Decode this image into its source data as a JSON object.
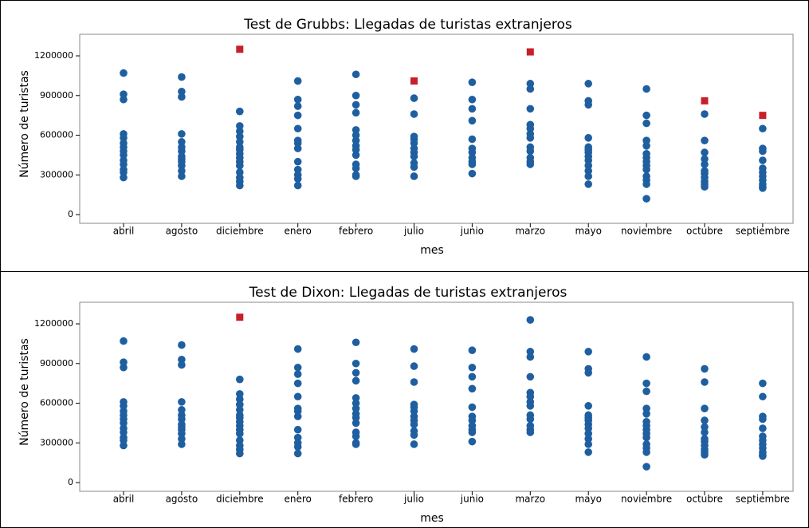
{
  "chart_data": [
    {
      "type": "strip",
      "title": "Test de Grubbs: Llegadas de turistas extranjeros",
      "x_label": "mes",
      "y_label": "Número de turistas",
      "categories": [
        "abril",
        "agosto",
        "diciembre",
        "enero",
        "febrero",
        "julio",
        "junio",
        "marzo",
        "mayo",
        "noviembre",
        "octubre",
        "septiembre"
      ],
      "ylim": [
        -66000,
        1363000
      ],
      "yticks": [
        0,
        300000,
        600000,
        900000,
        1200000
      ],
      "series": [
        {
          "color": "#1f5fa0",
          "marker": "circle",
          "values": [
            [
              1070000,
              910000,
              870000,
              610000,
              580000,
              540000,
              510000,
              480000,
              450000,
              410000,
              380000,
              340000,
              320000,
              280000
            ],
            [
              1040000,
              930000,
              890000,
              610000,
              550000,
              510000,
              480000,
              440000,
              420000,
              400000,
              370000,
              330000,
              290000
            ],
            [
              780000,
              670000,
              630000,
              590000,
              550000,
              510000,
              490000,
              460000,
              430000,
              400000,
              370000,
              320000,
              280000,
              250000,
              220000
            ],
            [
              1010000,
              870000,
              820000,
              750000,
              650000,
              560000,
              540000,
              500000,
              400000,
              340000,
              300000,
              270000,
              220000
            ],
            [
              1060000,
              900000,
              830000,
              770000,
              640000,
              600000,
              560000,
              520000,
              490000,
              450000,
              380000,
              350000,
              300000,
              290000
            ],
            [
              880000,
              760000,
              590000,
              570000,
              540000,
              500000,
              470000,
              440000,
              390000,
              360000,
              290000
            ],
            [
              1000000,
              870000,
              800000,
              710000,
              570000,
              500000,
              470000,
              430000,
              400000,
              380000,
              310000
            ],
            [
              990000,
              950000,
              800000,
              680000,
              650000,
              610000,
              580000,
              510000,
              480000,
              430000,
              400000,
              380000
            ],
            [
              990000,
              860000,
              830000,
              580000,
              510000,
              490000,
              470000,
              440000,
              410000,
              370000,
              330000,
              290000,
              230000
            ],
            [
              950000,
              750000,
              690000,
              560000,
              520000,
              460000,
              430000,
              400000,
              370000,
              340000,
              290000,
              260000,
              230000,
              120000
            ],
            [
              760000,
              560000,
              470000,
              420000,
              380000,
              330000,
              310000,
              280000,
              250000,
              230000,
              210000
            ],
            [
              650000,
              500000,
              480000,
              410000,
              350000,
              320000,
              290000,
              260000,
              230000,
              210000,
              200000
            ]
          ]
        },
        {
          "color": "#c8202a",
          "marker": "square",
          "values": [
            [],
            [],
            [
              1250000
            ],
            [],
            [],
            [
              1010000
            ],
            [],
            [
              1230000
            ],
            [],
            [],
            [
              860000
            ],
            [
              750000
            ]
          ]
        }
      ]
    },
    {
      "type": "strip",
      "title": "Test de Dixon: Llegadas de turistas extranjeros",
      "x_label": "mes",
      "y_label": "Número de turistas",
      "categories": [
        "abril",
        "agosto",
        "diciembre",
        "enero",
        "febrero",
        "julio",
        "junio",
        "marzo",
        "mayo",
        "noviembre",
        "octubre",
        "septiembre"
      ],
      "ylim": [
        -66000,
        1363000
      ],
      "yticks": [
        0,
        300000,
        600000,
        900000,
        1200000
      ],
      "series": [
        {
          "color": "#1f5fa0",
          "marker": "circle",
          "values": [
            [
              1070000,
              910000,
              870000,
              610000,
              580000,
              540000,
              510000,
              480000,
              450000,
              410000,
              380000,
              340000,
              320000,
              280000
            ],
            [
              1040000,
              930000,
              890000,
              610000,
              550000,
              510000,
              480000,
              440000,
              420000,
              400000,
              370000,
              330000,
              290000
            ],
            [
              780000,
              670000,
              630000,
              590000,
              550000,
              510000,
              490000,
              460000,
              430000,
              400000,
              370000,
              320000,
              280000,
              250000,
              220000
            ],
            [
              1010000,
              870000,
              820000,
              750000,
              650000,
              560000,
              540000,
              500000,
              400000,
              340000,
              300000,
              270000,
              220000
            ],
            [
              1060000,
              900000,
              830000,
              770000,
              640000,
              600000,
              560000,
              520000,
              490000,
              450000,
              380000,
              350000,
              300000,
              290000
            ],
            [
              1010000,
              880000,
              760000,
              590000,
              570000,
              540000,
              500000,
              470000,
              440000,
              390000,
              360000,
              290000
            ],
            [
              1000000,
              870000,
              800000,
              710000,
              570000,
              500000,
              470000,
              430000,
              400000,
              380000,
              310000
            ],
            [
              1230000,
              990000,
              950000,
              800000,
              680000,
              650000,
              610000,
              580000,
              510000,
              480000,
              430000,
              400000,
              380000
            ],
            [
              990000,
              860000,
              830000,
              580000,
              510000,
              490000,
              470000,
              440000,
              410000,
              370000,
              330000,
              290000,
              230000
            ],
            [
              950000,
              750000,
              690000,
              560000,
              520000,
              460000,
              430000,
              400000,
              370000,
              340000,
              290000,
              260000,
              230000,
              120000
            ],
            [
              860000,
              760000,
              560000,
              470000,
              420000,
              380000,
              330000,
              310000,
              280000,
              250000,
              230000,
              210000
            ],
            [
              750000,
              650000,
              500000,
              480000,
              410000,
              350000,
              320000,
              290000,
              260000,
              230000,
              210000,
              200000
            ]
          ]
        },
        {
          "color": "#c8202a",
          "marker": "square",
          "values": [
            [],
            [],
            [
              1250000
            ],
            [],
            [],
            [],
            [],
            [],
            [],
            [],
            [],
            []
          ]
        }
      ]
    }
  ]
}
